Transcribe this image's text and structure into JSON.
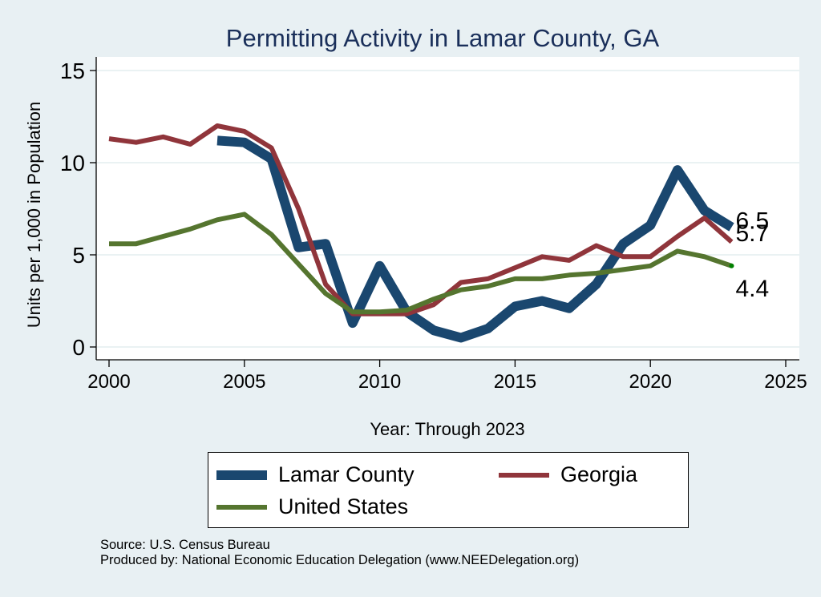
{
  "chart_data": {
    "type": "line",
    "title": "Permitting Activity in Lamar County, GA",
    "xlabel": "Year: Through 2023",
    "ylabel": "Units per 1,000 in Population",
    "xlim": [
      2000,
      2025
    ],
    "ylim": [
      0,
      15
    ],
    "xticks": [
      2000,
      2005,
      2010,
      2015,
      2020,
      2025
    ],
    "yticks": [
      0,
      5,
      10,
      15
    ],
    "grid": true,
    "legend_position": "bottom",
    "series": [
      {
        "name": "Lamar County",
        "color": "#1a476f",
        "x": [
          2004,
          2005,
          2006,
          2007,
          2008,
          2009,
          2010,
          2011,
          2012,
          2013,
          2014,
          2015,
          2016,
          2017,
          2018,
          2019,
          2020,
          2021,
          2022,
          2023
        ],
        "values": [
          11.2,
          11.1,
          10.2,
          5.4,
          5.6,
          1.3,
          4.4,
          1.9,
          0.9,
          0.5,
          1.0,
          2.2,
          2.5,
          2.1,
          3.4,
          5.6,
          6.6,
          9.6,
          7.4,
          6.5
        ],
        "end_label": "6.5"
      },
      {
        "name": "Georgia",
        "color": "#90353b",
        "x": [
          2000,
          2001,
          2002,
          2003,
          2004,
          2005,
          2006,
          2007,
          2008,
          2009,
          2010,
          2011,
          2012,
          2013,
          2014,
          2015,
          2016,
          2017,
          2018,
          2019,
          2020,
          2021,
          2022,
          2023
        ],
        "values": [
          11.3,
          11.1,
          11.4,
          11.0,
          12.0,
          11.7,
          10.8,
          7.5,
          3.4,
          1.8,
          1.8,
          1.8,
          2.3,
          3.5,
          3.7,
          4.3,
          4.9,
          4.7,
          5.5,
          4.9,
          4.9,
          6.0,
          7.0,
          5.7
        ],
        "end_label": "5.7"
      },
      {
        "name": "United States",
        "color": "#55752f",
        "x": [
          2000,
          2001,
          2002,
          2003,
          2004,
          2005,
          2006,
          2007,
          2008,
          2009,
          2010,
          2011,
          2012,
          2013,
          2014,
          2015,
          2016,
          2017,
          2018,
          2019,
          2020,
          2021,
          2022,
          2023
        ],
        "values": [
          5.6,
          5.6,
          6.0,
          6.4,
          6.9,
          7.2,
          6.1,
          4.5,
          2.9,
          1.9,
          1.9,
          2.0,
          2.6,
          3.1,
          3.3,
          3.7,
          3.7,
          3.9,
          4.0,
          4.2,
          4.4,
          5.2,
          4.9,
          4.4
        ],
        "end_label": "4.4"
      }
    ]
  },
  "legend": {
    "items": [
      {
        "label": "Lamar County",
        "color": "#1a476f"
      },
      {
        "label": "Georgia",
        "color": "#90353b"
      },
      {
        "label": "United States",
        "color": "#55752f"
      }
    ]
  },
  "footer": {
    "source": "Source: U.S. Census Bureau",
    "produced_by": "Produced by: National Economic Education Delegation (www.NEEDelegation.org)"
  },
  "colors": {
    "background": "#e8f0f3",
    "title": "#1a2f5a",
    "end_marker": "#008000"
  }
}
